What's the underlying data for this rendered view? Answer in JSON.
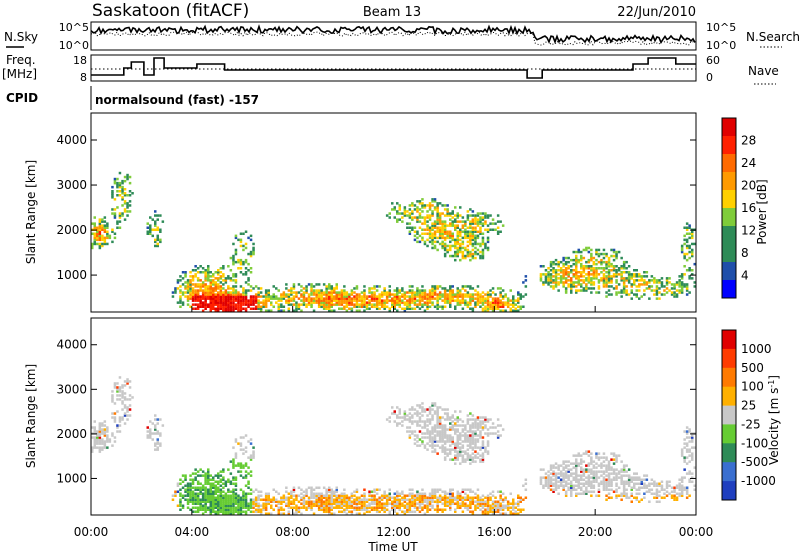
{
  "header": {
    "station": "Saskatoon (fitACF)",
    "beam": "Beam 13",
    "date": "22/Jun/2010",
    "cpid_label": "CPID",
    "cpid_value": "normalsound (fast) -157",
    "nsky_label": "N.Sky",
    "nsearch_label": "N.Search",
    "freq_label_1": "Freq.",
    "freq_label_2": "[MHz]",
    "nave_label": "Nave",
    "noise_left_ticks": [
      "10^5",
      "10^0"
    ],
    "noise_right_ticks": [
      "10^5",
      "10^0"
    ],
    "freq_left_ticks": [
      "18",
      "8"
    ],
    "freq_right_ticks": [
      "60",
      "0"
    ]
  },
  "chart_data": [
    {
      "type": "heatmap",
      "name": "power-panel",
      "title": "",
      "xlabel": "",
      "ylabel": "Slant Range [km]",
      "xlim_hours": [
        0,
        24
      ],
      "ylim": [
        180,
        4600
      ],
      "y_ticks": [
        1000,
        2000,
        3000,
        4000
      ],
      "colorbar": {
        "label": "Power [dB]",
        "ticks": [
          "28",
          "24",
          "20",
          "16",
          "12",
          "8",
          "4"
        ],
        "range": [
          0,
          30
        ],
        "colors": [
          "#0000ff",
          "#1f4faa",
          "#2e8b57",
          "#2e8b57",
          "#7fcc3a",
          "#ffd000",
          "#ff9a00",
          "#ff6a00",
          "#ff2000",
          "#e00000"
        ]
      }
    },
    {
      "type": "heatmap",
      "name": "velocity-panel",
      "title": "",
      "xlabel": "Time UT",
      "ylabel": "Slant Range [km]",
      "xlim_hours": [
        0,
        24
      ],
      "ylim": [
        180,
        4600
      ],
      "y_ticks": [
        1000,
        2000,
        3000,
        4000
      ],
      "x_tick_labels": [
        "00:00",
        "04:00",
        "08:00",
        "12:00",
        "16:00",
        "20:00",
        "00:00"
      ],
      "colorbar": {
        "label": "Velocity [m s-1]",
        "ticks": [
          "1000",
          "500",
          "100",
          "25",
          "-25",
          "-100",
          "-500",
          "-1000"
        ],
        "colors": [
          "#1f3fbf",
          "#3a6fd0",
          "#2e8b57",
          "#66cc33",
          "#c8c8c8",
          "#ffb000",
          "#ff7a00",
          "#ff3b00",
          "#e00000"
        ]
      }
    }
  ]
}
